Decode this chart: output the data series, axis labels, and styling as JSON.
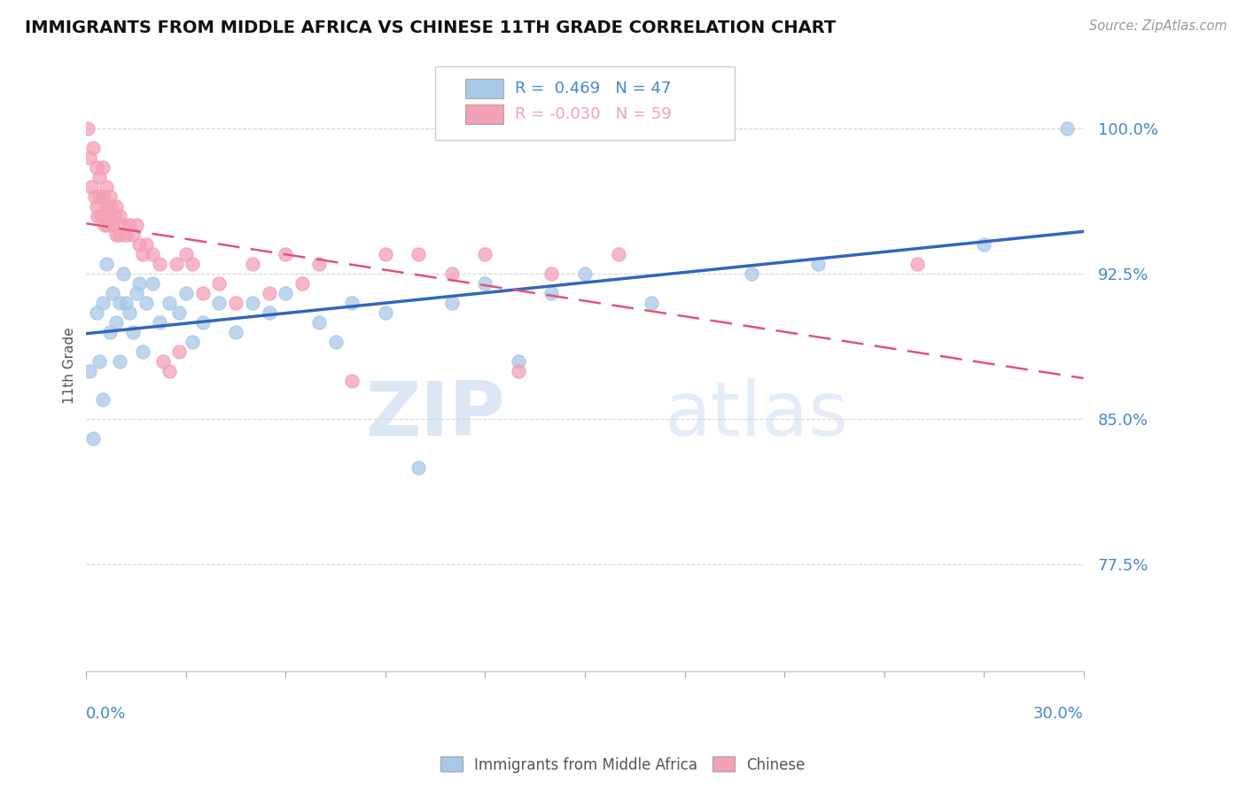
{
  "title": "IMMIGRANTS FROM MIDDLE AFRICA VS CHINESE 11TH GRADE CORRELATION CHART",
  "source": "Source: ZipAtlas.com",
  "ylabel": "11th Grade",
  "xlim": [
    0.0,
    30.0
  ],
  "ylim": [
    72.0,
    103.5
  ],
  "yticks": [
    77.5,
    85.0,
    92.5,
    100.0
  ],
  "ytick_labels": [
    "77.5%",
    "85.0%",
    "92.5%",
    "100.0%"
  ],
  "legend_blue_label": "Immigrants from Middle Africa",
  "legend_pink_label": "Chinese",
  "R_blue": 0.469,
  "N_blue": 47,
  "R_pink": -0.03,
  "N_pink": 59,
  "blue_color": "#a8c8e8",
  "pink_color": "#f4a0b5",
  "blue_line_color": "#3366bb",
  "pink_line_color": "#e05575",
  "watermark_zip": "ZIP",
  "watermark_atlas": "atlas",
  "background_color": "#ffffff",
  "title_color": "#111111",
  "axis_label_color": "#4488cc",
  "grid_color": "#cccccc",
  "blue_scatter_x": [
    0.1,
    0.2,
    0.3,
    0.4,
    0.5,
    0.5,
    0.6,
    0.7,
    0.8,
    0.9,
    1.0,
    1.0,
    1.1,
    1.2,
    1.3,
    1.4,
    1.5,
    1.6,
    1.7,
    1.8,
    2.0,
    2.2,
    2.5,
    2.8,
    3.0,
    3.2,
    3.5,
    4.0,
    4.5,
    5.0,
    5.5,
    6.0,
    7.0,
    7.5,
    8.0,
    9.0,
    10.0,
    11.0,
    12.0,
    13.0,
    14.0,
    15.0,
    17.0,
    20.0,
    22.0,
    27.0,
    29.5
  ],
  "blue_scatter_y": [
    87.5,
    84.0,
    90.5,
    88.0,
    91.0,
    86.0,
    93.0,
    89.5,
    91.5,
    90.0,
    91.0,
    88.0,
    92.5,
    91.0,
    90.5,
    89.5,
    91.5,
    92.0,
    88.5,
    91.0,
    92.0,
    90.0,
    91.0,
    90.5,
    91.5,
    89.0,
    90.0,
    91.0,
    89.5,
    91.0,
    90.5,
    91.5,
    90.0,
    89.0,
    91.0,
    90.5,
    82.5,
    91.0,
    92.0,
    88.0,
    91.5,
    92.5,
    91.0,
    92.5,
    93.0,
    94.0,
    100.0
  ],
  "pink_scatter_x": [
    0.05,
    0.1,
    0.15,
    0.2,
    0.25,
    0.3,
    0.3,
    0.35,
    0.4,
    0.4,
    0.45,
    0.5,
    0.5,
    0.55,
    0.6,
    0.6,
    0.65,
    0.7,
    0.7,
    0.75,
    0.8,
    0.85,
    0.9,
    0.9,
    1.0,
    1.0,
    1.1,
    1.2,
    1.3,
    1.4,
    1.5,
    1.6,
    1.7,
    1.8,
    2.0,
    2.2,
    2.3,
    2.5,
    2.7,
    2.8,
    3.0,
    3.2,
    3.5,
    4.0,
    4.5,
    5.0,
    5.5,
    6.0,
    6.5,
    7.0,
    8.0,
    9.0,
    10.0,
    11.0,
    12.0,
    13.0,
    14.0,
    16.0,
    25.0
  ],
  "pink_scatter_y": [
    100.0,
    98.5,
    97.0,
    99.0,
    96.5,
    96.0,
    98.0,
    95.5,
    97.5,
    96.5,
    95.5,
    98.0,
    96.5,
    95.0,
    97.0,
    96.0,
    95.0,
    96.5,
    95.5,
    96.0,
    95.0,
    95.5,
    96.0,
    94.5,
    95.5,
    94.5,
    95.0,
    94.5,
    95.0,
    94.5,
    95.0,
    94.0,
    93.5,
    94.0,
    93.5,
    93.0,
    88.0,
    87.5,
    93.0,
    88.5,
    93.5,
    93.0,
    91.5,
    92.0,
    91.0,
    93.0,
    91.5,
    93.5,
    92.0,
    93.0,
    87.0,
    93.5,
    93.5,
    92.5,
    93.5,
    87.5,
    92.5,
    93.5,
    93.0
  ]
}
